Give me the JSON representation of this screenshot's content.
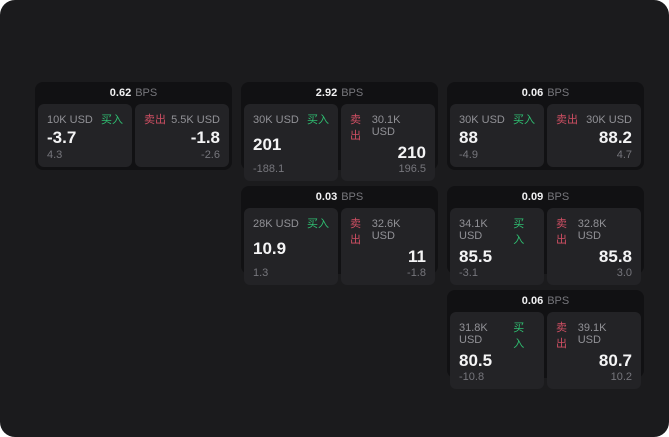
{
  "labels": {
    "buy": "买入",
    "sell": "卖出",
    "bps_unit": "BPS"
  },
  "colors": {
    "surface_bg": "#1b1b1d",
    "card_bg": "#111113",
    "panel_bg": "#232326",
    "buy_green": "#2fbe71",
    "sell_red": "#cf4f63",
    "value_text": "#f4f4f5",
    "muted_text": "#919196"
  },
  "cards": [
    {
      "bps": "0.62",
      "row": 1,
      "col": 1,
      "buy": {
        "size": "10K USD",
        "price": "-3.7",
        "pnl": "4.3"
      },
      "sell": {
        "size": "5.5K USD",
        "price": "-1.8",
        "pnl": "-2.6"
      }
    },
    {
      "bps": "2.92",
      "row": 1,
      "col": 2,
      "buy": {
        "size": "30K USD",
        "price": "201",
        "pnl": "-188.1"
      },
      "sell": {
        "size": "30.1K USD",
        "price": "210",
        "pnl": "196.5"
      }
    },
    {
      "bps": "0.06",
      "row": 1,
      "col": 3,
      "buy": {
        "size": "30K USD",
        "price": "88",
        "pnl": "-4.9"
      },
      "sell": {
        "size": "30K USD",
        "price": "88.2",
        "pnl": "4.7"
      }
    },
    {
      "bps": "0.03",
      "row": 2,
      "col": 2,
      "buy": {
        "size": "28K USD",
        "price": "10.9",
        "pnl": "1.3"
      },
      "sell": {
        "size": "32.6K USD",
        "price": "11",
        "pnl": "-1.8"
      }
    },
    {
      "bps": "0.09",
      "row": 2,
      "col": 3,
      "buy": {
        "size": "34.1K USD",
        "price": "85.5",
        "pnl": "-3.1"
      },
      "sell": {
        "size": "32.8K USD",
        "price": "85.8",
        "pnl": "3.0"
      }
    },
    {
      "bps": "0.06",
      "row": 3,
      "col": 3,
      "buy": {
        "size": "31.8K USD",
        "price": "80.5",
        "pnl": "-10.8"
      },
      "sell": {
        "size": "39.1K USD",
        "price": "80.7",
        "pnl": "10.2"
      }
    }
  ]
}
